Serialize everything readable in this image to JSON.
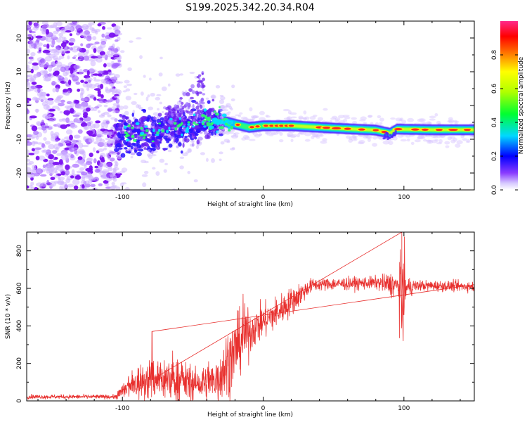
{
  "figure": {
    "title": "S199.2025.342.20.34.R04"
  },
  "colors": {
    "snr_line": "#e8302e",
    "axis": "#000000",
    "background": "#ffffff"
  },
  "chart_data": [
    {
      "type": "heatmap",
      "title": "S199.2025.342.20.34.R04",
      "xlabel": "Height of straight line (km)",
      "ylabel": "Frequency (Hz)",
      "xlim": [
        -168,
        150
      ],
      "ylim": [
        -25,
        25
      ],
      "xticks": [
        -100,
        0,
        100
      ],
      "yticks": [
        -20,
        -10,
        0,
        10,
        20
      ],
      "colorbar": {
        "label": "Normalized spectral amplitude",
        "range": [
          0,
          1
        ],
        "ticks": [
          0.0,
          0.2,
          0.4,
          0.6,
          0.8
        ]
      },
      "ridge": [
        {
          "x": -100,
          "y": -9.0
        },
        {
          "x": -90,
          "y": -8.5
        },
        {
          "x": -80,
          "y": -8.0
        },
        {
          "x": -70,
          "y": -7.0
        },
        {
          "x": -60,
          "y": -6.5
        },
        {
          "x": -50,
          "y": -5.5
        },
        {
          "x": -40,
          "y": -5.0
        },
        {
          "x": -30,
          "y": -4.5
        },
        {
          "x": -20,
          "y": -5.5
        },
        {
          "x": -10,
          "y": -6.5
        },
        {
          "x": 0,
          "y": -6.0
        },
        {
          "x": 20,
          "y": -6.0
        },
        {
          "x": 50,
          "y": -6.7
        },
        {
          "x": 80,
          "y": -7.3
        },
        {
          "x": 90,
          "y": -8.2
        },
        {
          "x": 95,
          "y": -7.0
        },
        {
          "x": 120,
          "y": -7.2
        },
        {
          "x": 150,
          "y": -7.2
        }
      ]
    },
    {
      "type": "line",
      "xlabel": "Height of straight line (km)",
      "ylabel": "SNR (10 * v/v)",
      "xlim": [
        -168,
        150
      ],
      "ylim": [
        0,
        900
      ],
      "xticks": [
        -100,
        0,
        100
      ],
      "yticks": [
        0,
        200,
        400,
        600,
        800
      ],
      "series": [
        {
          "name": "SNR",
          "envelope": [
            {
              "x": -168,
              "mean": 22,
              "spread": 10
            },
            {
              "x": -105,
              "mean": 22,
              "spread": 10
            },
            {
              "x": -100,
              "mean": 50,
              "spread": 40
            },
            {
              "x": -90,
              "mean": 95,
              "spread": 80
            },
            {
              "x": -75,
              "mean": 120,
              "spread": 110
            },
            {
              "x": -60,
              "mean": 110,
              "spread": 100
            },
            {
              "x": -45,
              "mean": 85,
              "spread": 70
            },
            {
              "x": -35,
              "mean": 100,
              "spread": 110
            },
            {
              "x": -25,
              "mean": 200,
              "spread": 180
            },
            {
              "x": -15,
              "mean": 330,
              "spread": 140
            },
            {
              "x": -5,
              "mean": 400,
              "spread": 90
            },
            {
              "x": 10,
              "mean": 470,
              "spread": 80
            },
            {
              "x": 25,
              "mean": 560,
              "spread": 60
            },
            {
              "x": 35,
              "mean": 620,
              "spread": 30
            },
            {
              "x": 80,
              "mean": 630,
              "spread": 30
            },
            {
              "x": 92,
              "mean": 620,
              "spread": 60
            },
            {
              "x": 100,
              "mean": 600,
              "spread": 60
            },
            {
              "x": 110,
              "mean": 615,
              "spread": 25
            },
            {
              "x": 150,
              "mean": 610,
              "spread": 25
            }
          ],
          "features": [
            {
              "x": -79,
              "value": 370
            },
            {
              "x": 98.5,
              "value": 900
            },
            {
              "x": 99.5,
              "value": 320
            }
          ]
        }
      ]
    }
  ]
}
